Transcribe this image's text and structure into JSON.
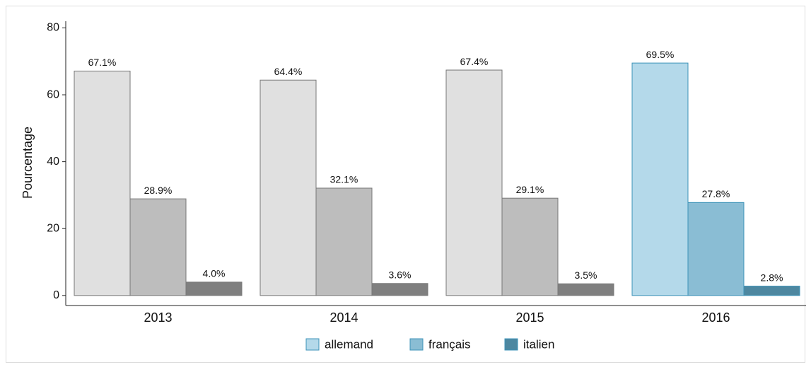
{
  "chart_data": {
    "type": "bar",
    "y_label": "Pourcentage",
    "categories": [
      "2013",
      "2014",
      "2015",
      "2016"
    ],
    "series": [
      {
        "name": "allemand",
        "color": "#b4d9ea",
        "colors": [
          "#e0e0e0",
          "#e0e0e0",
          "#e0e0e0",
          "#b4d9ea"
        ],
        "values": [
          67.1,
          64.4,
          67.4,
          69.5
        ],
        "value_labels": [
          "67.1%",
          "64.4%",
          "67.4%",
          "69.5%"
        ]
      },
      {
        "name": "français",
        "color": "#8abdd4",
        "colors": [
          "#bdbdbd",
          "#bdbdbd",
          "#bdbdbd",
          "#8abdd4"
        ],
        "values": [
          28.9,
          32.1,
          29.1,
          27.8
        ],
        "value_labels": [
          "28.9%",
          "32.1%",
          "29.1%",
          "27.8%"
        ]
      },
      {
        "name": "italien",
        "color": "#4d87a0",
        "colors": [
          "#7f7f7f",
          "#7f7f7f",
          "#7f7f7f",
          "#4d87a0"
        ],
        "values": [
          4.0,
          3.6,
          3.5,
          2.8
        ],
        "value_labels": [
          "4.0%",
          "3.6%",
          "3.5%",
          "2.8%"
        ]
      }
    ],
    "ylim": [
      -3,
      82
    ],
    "yticks": [
      0,
      20,
      40,
      60,
      80
    ]
  }
}
